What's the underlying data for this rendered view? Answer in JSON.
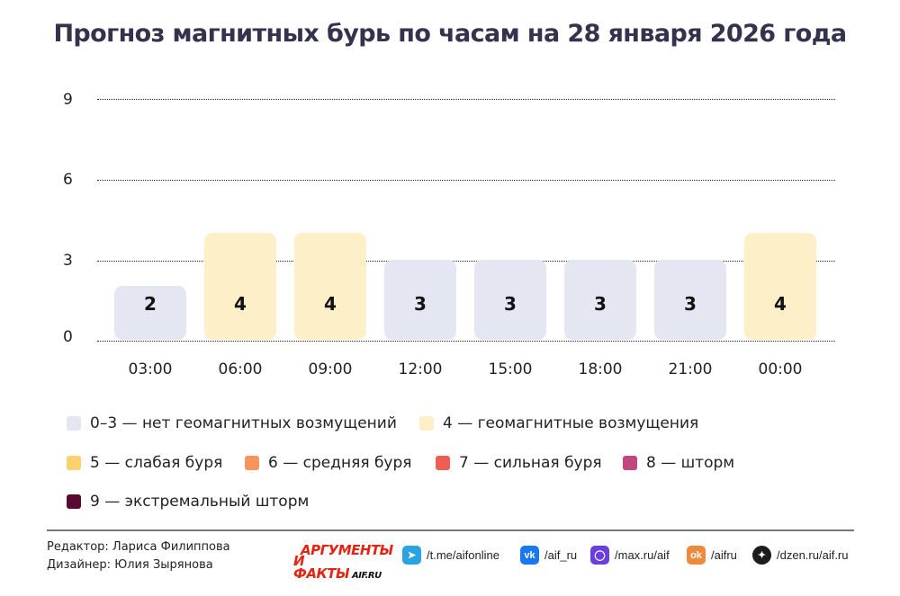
{
  "header": {
    "title": "Прогноз магнитных бурь по часам на 28 января 2026 года"
  },
  "chart_data": {
    "type": "bar",
    "title": "Прогноз магнитных бурь по часам на 28 января 2026 года",
    "xlabel": "",
    "ylabel": "",
    "ylim": [
      0,
      9
    ],
    "yticks": [
      "0",
      "3",
      "6",
      "9"
    ],
    "grid": "horizontal dotted",
    "categories": [
      "03:00",
      "06:00",
      "09:00",
      "12:00",
      "15:00",
      "18:00",
      "21:00",
      "00:00"
    ],
    "values": [
      2,
      4,
      4,
      3,
      3,
      3,
      3,
      4
    ],
    "value_labels": [
      "2",
      "4",
      "4",
      "3",
      "3",
      "3",
      "3",
      "4"
    ],
    "bar_colors": [
      "#e4e7f1",
      "#fdefc8",
      "#fdefc8",
      "#e4e7f1",
      "#e4e7f1",
      "#e4e7f1",
      "#e4e7f1",
      "#fdefc8"
    ],
    "legend_position": "bottom",
    "legend": [
      {
        "label": "0–3 — нет геомагнитных возмущений",
        "color": "#e4e7f1"
      },
      {
        "label": "4 — геомагнитные возмущения",
        "color": "#fdefc8"
      },
      {
        "label": "5 — слабая буря",
        "color": "#fcd26e"
      },
      {
        "label": "6 — средняя буря",
        "color": "#f7935d"
      },
      {
        "label": "7 — сильная буря",
        "color": "#ee5e52"
      },
      {
        "label": "8 — шторм",
        "color": "#c2467f"
      },
      {
        "label": "9 — экстремальный шторм",
        "color": "#5a0a2e"
      }
    ]
  },
  "footer": {
    "editor": "Редактор: Лариса Филиппова",
    "designer": "Дизайнер: Юлия Зырянова",
    "logo_line1": "АРГУМЕНТЫ",
    "logo_line2": "И ФАКТЫ",
    "logo_site": "AIF.RU",
    "socials": [
      {
        "icon": "telegram-icon",
        "label": "/t.me/aifonline",
        "color": "#2aa3e0",
        "glyph": "➤"
      },
      {
        "icon": "vk-icon",
        "label": "/aif_ru",
        "color": "#1877f2",
        "glyph": "vk"
      },
      {
        "icon": "max-icon",
        "label": "/max.ru/aif",
        "color": "#6a3fe0",
        "glyph": "◯"
      },
      {
        "icon": "odnoklassniki-icon",
        "label": "/aifru",
        "color": "#ee8a3c",
        "glyph": "ok"
      },
      {
        "icon": "dzen-icon",
        "label": "/dzen.ru/aif.ru",
        "color": "#1c1c1c",
        "glyph": "✦"
      }
    ]
  }
}
